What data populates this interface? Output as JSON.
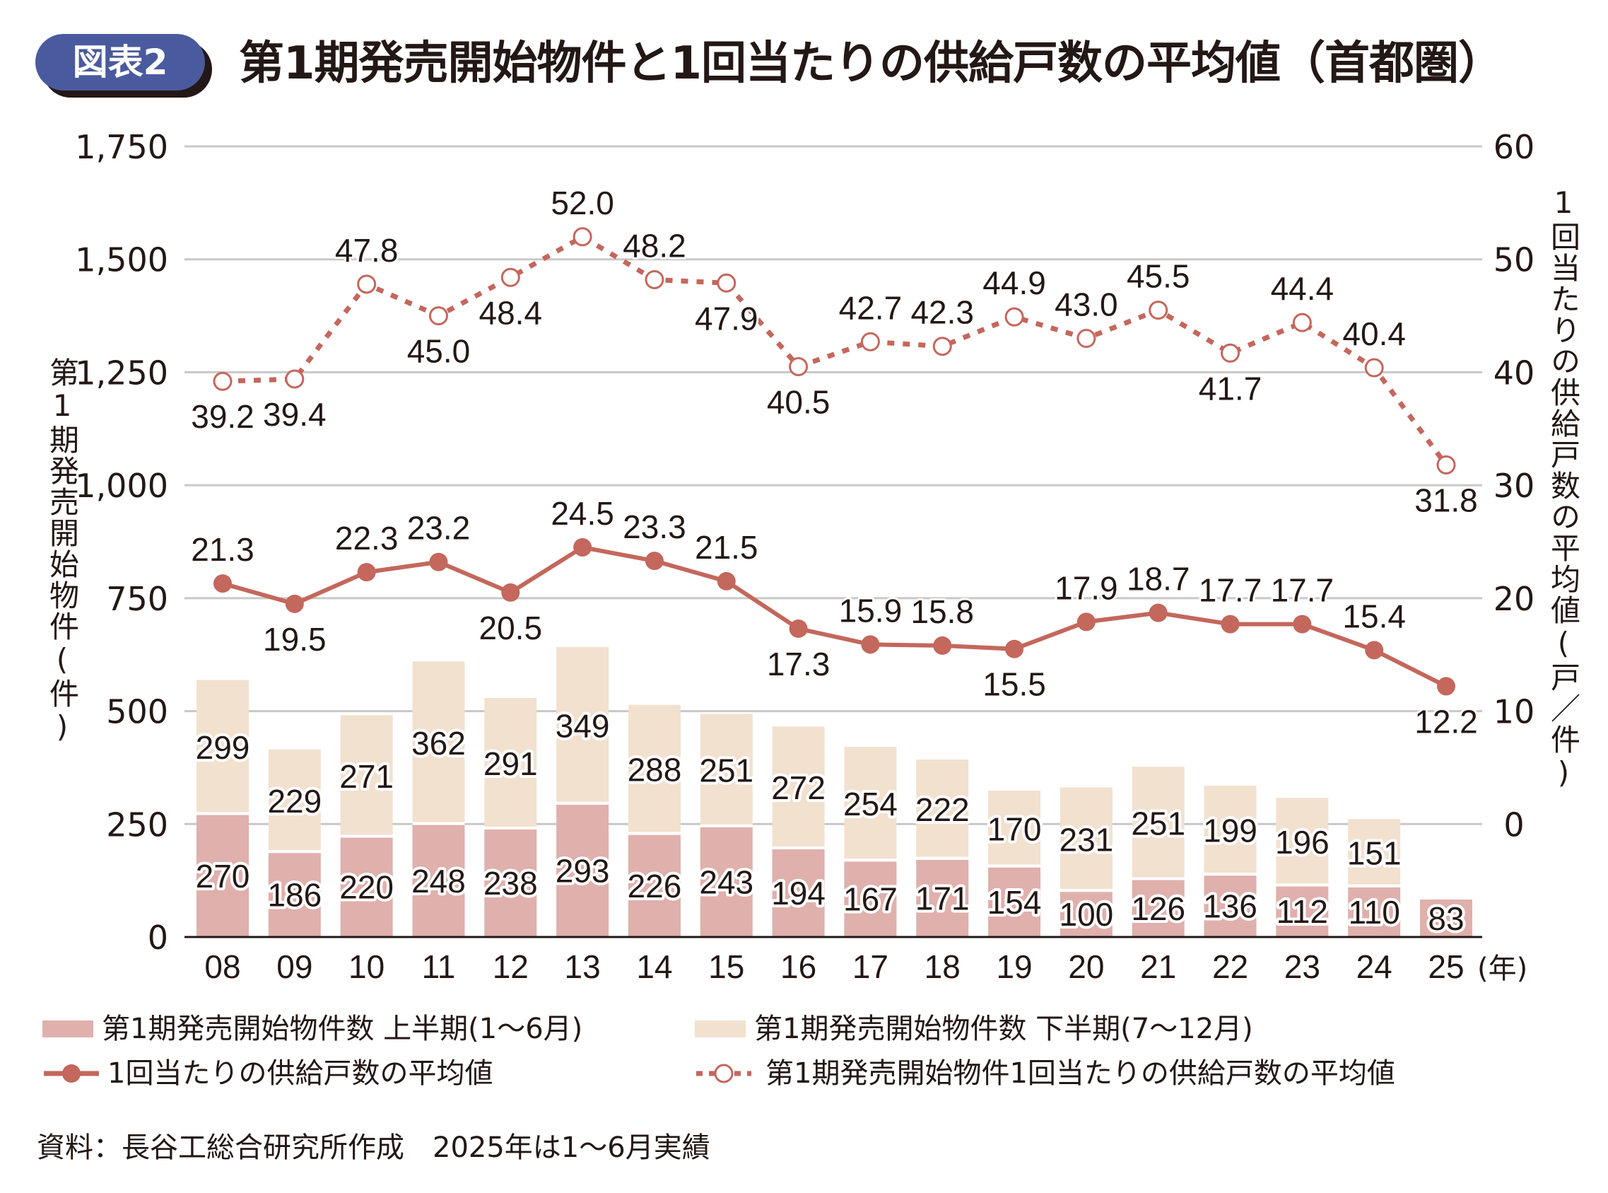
{
  "header": {
    "badge": "図表2",
    "title": "第1期発売開始物件と1回当たりの供給戸数の平均値（首都圏）"
  },
  "colors": {
    "first_half": "#e0b0ac",
    "second_half": "#f2e1cf",
    "line": "#c4675c",
    "grid": "#c8c8c8",
    "text": "#231815",
    "badge": "#4a5a9e"
  },
  "legend": {
    "first_half": "第1期発売開始物件数 上半期(1～6月)",
    "second_half": "第1期発売開始物件数 下半期(7～12月)",
    "avg_solid": "1回当たりの供給戸数の平均値",
    "avg_dotted": "第1期発売開始物件1回当たりの供給戸数の平均値"
  },
  "footnote": "資料：長谷工総合研究所作成　2025年は1～6月実績",
  "chart_data": {
    "type": "bar",
    "title": "第1期発売開始物件と1回当たりの供給戸数の平均値（首都圏）",
    "categories": [
      "08",
      "09",
      "10",
      "11",
      "12",
      "13",
      "14",
      "15",
      "16",
      "17",
      "18",
      "19",
      "20",
      "21",
      "22",
      "23",
      "24",
      "25"
    ],
    "xlabel_suffix": "(年)",
    "ylabel_left": "第1期発売開始物件(件)",
    "ylabel_right": "1回当たりの供給戸数の平均値(戸／件)",
    "ylim_left": [
      0,
      1750
    ],
    "yticks_left": [
      "0",
      "250",
      "500",
      "750",
      "1,000",
      "1,250",
      "1,500",
      "1,750"
    ],
    "ylim_right": [
      -10,
      60
    ],
    "yticks_right": [
      "0",
      "10",
      "20",
      "30",
      "40",
      "50",
      "60"
    ],
    "grid": true,
    "stacked": true,
    "series": [
      {
        "name": "第1期発売開始物件数 上半期(1～6月)",
        "kind": "bar",
        "axis": "left",
        "values": [
          270,
          186,
          220,
          248,
          238,
          293,
          226,
          243,
          194,
          167,
          171,
          154,
          100,
          126,
          136,
          112,
          110,
          83
        ]
      },
      {
        "name": "第1期発売開始物件数 下半期(7～12月)",
        "kind": "bar",
        "axis": "left",
        "values": [
          299,
          229,
          271,
          362,
          291,
          349,
          288,
          251,
          272,
          254,
          222,
          170,
          231,
          251,
          199,
          196,
          151,
          null
        ]
      },
      {
        "name": "1回当たりの供給戸数の平均値",
        "kind": "line",
        "style": "solid",
        "axis": "right",
        "values": [
          21.3,
          19.5,
          22.3,
          23.2,
          20.5,
          24.5,
          23.3,
          21.5,
          17.3,
          15.9,
          15.8,
          15.5,
          17.9,
          18.7,
          17.7,
          17.7,
          15.4,
          12.2
        ]
      },
      {
        "name": "第1期発売開始物件1回当たりの供給戸数の平均値",
        "kind": "line",
        "style": "dotted",
        "axis": "right",
        "values": [
          39.2,
          39.4,
          47.8,
          45.0,
          48.4,
          52.0,
          48.2,
          47.9,
          40.5,
          42.7,
          42.3,
          44.9,
          43.0,
          45.5,
          41.7,
          44.4,
          40.4,
          31.8
        ]
      }
    ],
    "legend_position": "bottom"
  }
}
